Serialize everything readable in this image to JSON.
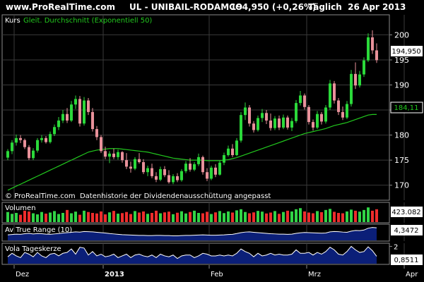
{
  "header": {
    "site": "www.ProRealTime.com",
    "instrument": "UL - UNIBAIL-RODAMCO",
    "price_change": "194,950 (+0,26%)",
    "interval_date": "Täglich  26 Apr 2013"
  },
  "price_panel": {
    "label_price": "Kurs",
    "label_ma": "Gleit. Durchschnitt (Exponentiell 50)",
    "footer": "© ProRealTime.com  Datenhistorie der Dividendenausschüttung angepasst",
    "last_price": "194,950",
    "last_ma": "184,11"
  },
  "volume_panel": {
    "label": "Volumen",
    "last": "423.082"
  },
  "atr_panel": {
    "label": "Av True Range (10)",
    "last": "4,3472"
  },
  "vola_panel": {
    "label": "Vola Tageskerze",
    "last": "0,8511"
  },
  "x_axis_labels": [
    "Dez",
    "2013",
    "Feb",
    "Mrz",
    "Apr"
  ],
  "colors": {
    "up": "#2bd93a",
    "down": "#e8919a",
    "ma": "#22c81e",
    "volume_up": "#31d446",
    "volume_down": "#ee2c2c",
    "indicator_fill": "#0b1f78",
    "background": "#000000",
    "grid": "#3a3a3a",
    "text": "#ffffff"
  },
  "chart_data": [
    {
      "type": "candlestick",
      "title": "UL - UNIBAIL-RODAMCO",
      "y_ticks": [
        170,
        175,
        180,
        185,
        190,
        195,
        200
      ],
      "y_tick_labels": [
        "170",
        "175",
        "180",
        "185",
        "190",
        "195",
        "200"
      ],
      "ylim": [
        167,
        204
      ],
      "x_labels": [
        "Dez",
        "2013",
        "Feb",
        "Mrz",
        "Apr"
      ],
      "x_label_index": [
        2,
        23,
        48,
        71,
        94
      ],
      "ohlc": [
        [
          175.5,
          177.2,
          175.0,
          176.8
        ],
        [
          176.8,
          179.0,
          176.2,
          178.5
        ],
        [
          178.5,
          180.1,
          177.9,
          179.4
        ],
        [
          179.4,
          180.0,
          178.4,
          179.0
        ],
        [
          179.0,
          179.3,
          177.2,
          177.6
        ],
        [
          177.6,
          178.0,
          175.0,
          175.4
        ],
        [
          175.4,
          177.4,
          175.0,
          176.9
        ],
        [
          176.9,
          179.4,
          176.5,
          179.0
        ],
        [
          179.0,
          180.0,
          178.5,
          179.4
        ],
        [
          179.4,
          179.8,
          178.3,
          178.6
        ],
        [
          178.6,
          180.7,
          178.3,
          180.2
        ],
        [
          180.2,
          182.1,
          179.8,
          181.6
        ],
        [
          181.6,
          183.6,
          181.0,
          182.9
        ],
        [
          182.9,
          185.0,
          182.4,
          184.2
        ],
        [
          184.2,
          185.4,
          182.4,
          182.9
        ],
        [
          182.9,
          186.8,
          182.6,
          186.1
        ],
        [
          186.1,
          187.9,
          185.2,
          187.2
        ],
        [
          187.2,
          187.8,
          181.7,
          182.3
        ],
        [
          182.3,
          187.6,
          181.9,
          186.9
        ],
        [
          186.9,
          187.4,
          184.0,
          184.6
        ],
        [
          184.6,
          185.4,
          180.7,
          181.2
        ],
        [
          181.2,
          181.8,
          179.0,
          179.6
        ],
        [
          179.6,
          180.0,
          176.4,
          176.8
        ],
        [
          176.8,
          177.7,
          175.2,
          175.7
        ],
        [
          175.7,
          176.8,
          174.4,
          176.3
        ],
        [
          176.3,
          177.3,
          175.2,
          175.6
        ],
        [
          175.6,
          177.1,
          175.1,
          176.6
        ],
        [
          176.6,
          176.8,
          174.5,
          175.0
        ],
        [
          175.0,
          176.4,
          173.2,
          173.7
        ],
        [
          173.7,
          174.7,
          172.5,
          173.3
        ],
        [
          173.3,
          175.6,
          173.0,
          175.2
        ],
        [
          175.2,
          176.4,
          174.3,
          174.6
        ],
        [
          174.6,
          175.2,
          172.2,
          172.6
        ],
        [
          172.6,
          173.9,
          171.8,
          173.4
        ],
        [
          173.4,
          174.3,
          171.4,
          171.8
        ],
        [
          171.8,
          172.6,
          170.6,
          171.1
        ],
        [
          171.1,
          173.7,
          170.8,
          173.2
        ],
        [
          173.2,
          173.8,
          171.6,
          172.0
        ],
        [
          172.0,
          173.0,
          170.3,
          170.6
        ],
        [
          170.6,
          172.2,
          170.2,
          171.8
        ],
        [
          171.8,
          172.4,
          170.6,
          171.0
        ],
        [
          171.0,
          173.2,
          170.7,
          172.8
        ],
        [
          172.8,
          174.8,
          172.4,
          174.3
        ],
        [
          174.3,
          175.4,
          172.7,
          173.1
        ],
        [
          173.1,
          174.6,
          172.8,
          174.2
        ],
        [
          174.2,
          176.3,
          173.8,
          175.6
        ],
        [
          175.6,
          175.9,
          172.1,
          172.6
        ],
        [
          172.6,
          173.4,
          170.8,
          171.3
        ],
        [
          171.3,
          173.9,
          171.0,
          173.5
        ],
        [
          173.5,
          174.2,
          171.6,
          172.1
        ],
        [
          172.1,
          174.9,
          171.9,
          174.5
        ],
        [
          174.5,
          176.5,
          174.0,
          176.0
        ],
        [
          176.0,
          177.9,
          175.7,
          177.3
        ],
        [
          177.3,
          178.2,
          175.6,
          176.0
        ],
        [
          176.0,
          179.4,
          175.8,
          178.9
        ],
        [
          178.9,
          184.6,
          178.5,
          184.0
        ],
        [
          184.0,
          186.5,
          183.0,
          185.5
        ],
        [
          185.5,
          186.0,
          181.7,
          182.3
        ],
        [
          182.3,
          182.8,
          180.5,
          181.0
        ],
        [
          181.0,
          183.9,
          180.7,
          183.4
        ],
        [
          183.4,
          185.2,
          182.6,
          184.4
        ],
        [
          184.4,
          185.0,
          182.2,
          182.9
        ],
        [
          182.9,
          184.3,
          180.9,
          181.4
        ],
        [
          181.4,
          183.8,
          181.0,
          183.3
        ],
        [
          183.3,
          183.9,
          181.0,
          181.5
        ],
        [
          181.5,
          184.1,
          181.2,
          183.5
        ],
        [
          183.5,
          183.9,
          181.1,
          181.5
        ],
        [
          181.5,
          183.4,
          180.8,
          182.8
        ],
        [
          182.8,
          187.0,
          182.4,
          186.4
        ],
        [
          186.4,
          188.8,
          185.9,
          187.9
        ],
        [
          187.9,
          188.3,
          185.1,
          185.6
        ],
        [
          185.6,
          186.0,
          182.1,
          182.6
        ],
        [
          182.6,
          183.1,
          180.9,
          181.5
        ],
        [
          181.5,
          184.8,
          181.2,
          184.2
        ],
        [
          184.2,
          184.6,
          182.1,
          182.7
        ],
        [
          182.7,
          186.0,
          182.3,
          185.5
        ],
        [
          185.5,
          191.0,
          185.0,
          190.3
        ],
        [
          190.3,
          190.8,
          186.3,
          186.9
        ],
        [
          186.9,
          187.4,
          184.0,
          184.6
        ],
        [
          184.6,
          185.7,
          183.0,
          183.5
        ],
        [
          183.5,
          186.8,
          183.2,
          186.2
        ],
        [
          186.2,
          193.0,
          185.7,
          192.2
        ],
        [
          192.2,
          194.5,
          189.2,
          189.9
        ],
        [
          189.9,
          192.8,
          189.5,
          192.1
        ],
        [
          192.1,
          195.5,
          191.6,
          194.9
        ],
        [
          194.9,
          200.3,
          194.6,
          199.5
        ],
        [
          199.5,
          200.9,
          196.2,
          196.9
        ],
        [
          196.9,
          198.3,
          194.4,
          194.95
        ]
      ],
      "ma": [
        169.0,
        169.4,
        169.8,
        170.2,
        170.6,
        171.0,
        171.4,
        171.8,
        172.2,
        172.6,
        173.0,
        173.4,
        173.8,
        174.2,
        174.6,
        175.0,
        175.4,
        175.8,
        176.2,
        176.6,
        176.8,
        177.0,
        177.1,
        177.2,
        177.3,
        177.3,
        177.3,
        177.2,
        177.1,
        177.0,
        176.9,
        176.8,
        176.7,
        176.6,
        176.4,
        176.2,
        176.0,
        175.8,
        175.6,
        175.4,
        175.3,
        175.2,
        175.1,
        175.0,
        175.0,
        175.0,
        175.0,
        174.9,
        174.9,
        174.9,
        174.9,
        175.0,
        175.1,
        175.3,
        175.5,
        175.8,
        176.1,
        176.4,
        176.7,
        177.0,
        177.3,
        177.6,
        177.9,
        178.2,
        178.5,
        178.8,
        179.1,
        179.4,
        179.7,
        180.0,
        180.3,
        180.5,
        180.7,
        180.9,
        181.1,
        181.3,
        181.6,
        181.9,
        182.1,
        182.3,
        182.5,
        182.8,
        183.1,
        183.4,
        183.7,
        184.0,
        184.11,
        184.11
      ]
    },
    {
      "type": "bar",
      "title": "Volumen",
      "values": [
        0.55,
        0.45,
        0.5,
        0.4,
        0.62,
        0.58,
        0.48,
        0.42,
        0.55,
        0.46,
        0.52,
        0.6,
        0.44,
        0.5,
        0.66,
        0.48,
        0.57,
        0.4,
        0.62,
        0.55,
        0.5,
        0.47,
        0.58,
        0.42,
        0.53,
        0.61,
        0.46,
        0.49,
        0.55,
        0.44,
        0.6,
        0.52,
        0.58,
        0.45,
        0.5,
        0.62,
        0.48,
        0.53,
        0.57,
        0.43,
        0.51,
        0.59,
        0.47,
        0.55,
        0.62,
        0.5,
        0.48,
        0.56,
        0.44,
        0.53,
        0.6,
        0.49,
        0.58,
        0.52,
        0.64,
        0.7,
        0.55,
        0.48,
        0.53,
        0.61,
        0.57,
        0.47,
        0.52,
        0.6,
        0.45,
        0.55,
        0.62,
        0.58,
        0.7,
        0.76,
        0.58,
        0.52,
        0.48,
        0.6,
        0.54,
        0.66,
        0.72,
        0.56,
        0.5,
        0.48,
        0.58,
        0.68,
        0.62,
        0.57,
        0.66,
        0.8,
        0.62,
        0.7
      ],
      "ylim": [
        0,
        1
      ]
    },
    {
      "type": "area",
      "title": "Av True Range (10)",
      "values": [
        0.3,
        0.32,
        0.34,
        0.33,
        0.36,
        0.38,
        0.35,
        0.37,
        0.36,
        0.34,
        0.33,
        0.35,
        0.37,
        0.4,
        0.42,
        0.44,
        0.46,
        0.45,
        0.48,
        0.47,
        0.46,
        0.44,
        0.42,
        0.4,
        0.37,
        0.35,
        0.33,
        0.31,
        0.3,
        0.29,
        0.28,
        0.27,
        0.27,
        0.26,
        0.26,
        0.27,
        0.27,
        0.26,
        0.26,
        0.25,
        0.25,
        0.26,
        0.27,
        0.27,
        0.28,
        0.29,
        0.3,
        0.29,
        0.28,
        0.28,
        0.29,
        0.3,
        0.32,
        0.33,
        0.37,
        0.42,
        0.45,
        0.46,
        0.44,
        0.42,
        0.4,
        0.38,
        0.36,
        0.35,
        0.34,
        0.34,
        0.33,
        0.34,
        0.38,
        0.41,
        0.43,
        0.42,
        0.41,
        0.4,
        0.39,
        0.4,
        0.46,
        0.48,
        0.47,
        0.45,
        0.44,
        0.5,
        0.54,
        0.53,
        0.56,
        0.66,
        0.7,
        0.68
      ],
      "ylim": [
        0,
        0.8
      ]
    },
    {
      "type": "line",
      "title": "Vola Tageskerze",
      "y_ticks": [
        1,
        2
      ],
      "y_tick_labels": [
        "",
        "2"
      ],
      "values": [
        0.8,
        1.2,
        0.9,
        0.7,
        1.3,
        1.1,
        0.8,
        1.3,
        0.9,
        0.7,
        1.1,
        1.2,
        0.9,
        1.2,
        1.3,
        1.7,
        1.1,
        1.9,
        1.8,
        1.0,
        1.4,
        0.9,
        1.1,
        0.8,
        0.9,
        1.1,
        0.7,
        0.9,
        1.1,
        0.7,
        1.0,
        1.1,
        0.9,
        0.8,
        1.0,
        0.7,
        1.1,
        0.9,
        0.8,
        1.0,
        0.6,
        0.9,
        1.0,
        1.0,
        0.7,
        0.9,
        1.2,
        1.1,
        0.9,
        0.9,
        1.0,
        0.9,
        1.0,
        0.9,
        1.2,
        1.7,
        1.4,
        1.2,
        0.8,
        1.2,
        0.9,
        1.0,
        1.2,
        1.0,
        1.1,
        1.0,
        1.0,
        1.1,
        1.6,
        1.2,
        1.2,
        1.3,
        1.0,
        1.3,
        1.1,
        1.4,
        1.9,
        1.6,
        1.1,
        1.0,
        1.4,
        2.0,
        1.6,
        1.3,
        1.4,
        1.95,
        1.5,
        0.85
      ],
      "ylim": [
        0,
        2.2
      ]
    }
  ]
}
